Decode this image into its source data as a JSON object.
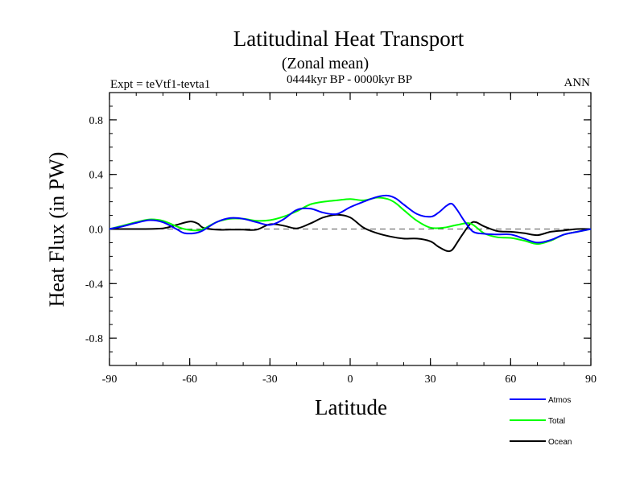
{
  "chart_data": {
    "type": "line",
    "title": "Latitudinal Heat Transport",
    "subtitle": "(Zonal mean)",
    "period": "0444kyr BP - 0000kyr BP",
    "experiment": "Expt = teVtf1-tevta1",
    "season": "ANN",
    "xlabel": "Latitude",
    "ylabel": "Heat Flux (in PW)",
    "xlim": [
      -90,
      90
    ],
    "ylim": [
      -1.0,
      1.0
    ],
    "x_ticks": [
      -90,
      -60,
      -30,
      0,
      30,
      60,
      90
    ],
    "x_tick_labels": [
      "-90",
      "-60",
      "-30",
      "0",
      "30",
      "60",
      "90"
    ],
    "y_ticks": [
      -0.8,
      -0.4,
      0.0,
      0.4,
      0.8
    ],
    "y_tick_labels": [
      "-0.8",
      "-0.4",
      "0.0",
      "0.4",
      "0.8"
    ],
    "zero_line": true,
    "legend_position": "bottom-right",
    "series": [
      {
        "name": "Atmos",
        "color": "#0000ff",
        "x": [
          -90,
          -85,
          -80,
          -75,
          -70,
          -65,
          -62,
          -58,
          -55,
          -50,
          -45,
          -40,
          -35,
          -30,
          -25,
          -20,
          -15,
          -10,
          -5,
          0,
          5,
          10,
          14,
          17,
          20,
          25,
          30,
          33,
          36,
          38,
          40,
          43,
          46,
          50,
          55,
          60,
          65,
          70,
          75,
          80,
          85,
          90
        ],
        "values": [
          0.0,
          0.02,
          0.045,
          0.065,
          0.05,
          0.0,
          -0.03,
          -0.03,
          -0.01,
          0.05,
          0.08,
          0.075,
          0.05,
          0.03,
          0.07,
          0.14,
          0.15,
          0.12,
          0.11,
          0.16,
          0.2,
          0.235,
          0.245,
          0.225,
          0.18,
          0.11,
          0.09,
          0.12,
          0.17,
          0.185,
          0.14,
          0.05,
          -0.02,
          -0.035,
          -0.04,
          -0.04,
          -0.07,
          -0.1,
          -0.08,
          -0.04,
          -0.02,
          0.0
        ]
      },
      {
        "name": "Total",
        "color": "#00ff00",
        "x": [
          -90,
          -85,
          -80,
          -75,
          -70,
          -65,
          -62,
          -58,
          -55,
          -50,
          -45,
          -40,
          -35,
          -30,
          -25,
          -20,
          -15,
          -10,
          -5,
          0,
          5,
          10,
          14,
          17,
          20,
          25,
          30,
          35,
          40,
          45,
          50,
          55,
          60,
          65,
          70,
          75,
          80,
          85,
          90
        ],
        "values": [
          0.0,
          0.025,
          0.05,
          0.07,
          0.06,
          0.02,
          0.0,
          -0.01,
          0.0,
          0.05,
          0.075,
          0.075,
          0.06,
          0.065,
          0.09,
          0.13,
          0.18,
          0.2,
          0.21,
          0.22,
          0.21,
          0.23,
          0.22,
          0.19,
          0.14,
          0.06,
          0.01,
          0.01,
          0.03,
          0.04,
          -0.03,
          -0.06,
          -0.065,
          -0.085,
          -0.11,
          -0.085,
          -0.04,
          -0.02,
          0.0
        ]
      },
      {
        "name": "Ocean",
        "color": "#000000",
        "x": [
          -90,
          -80,
          -70,
          -65,
          -60,
          -57,
          -55,
          -50,
          -45,
          -40,
          -35,
          -30,
          -25,
          -20,
          -15,
          -10,
          -5,
          0,
          5,
          10,
          15,
          20,
          25,
          30,
          33,
          36,
          38,
          40,
          42,
          45,
          47,
          50,
          55,
          60,
          65,
          70,
          75,
          80,
          85,
          90
        ],
        "values": [
          0.0,
          0.0,
          0.005,
          0.03,
          0.055,
          0.04,
          0.01,
          -0.005,
          -0.005,
          -0.005,
          -0.005,
          0.035,
          0.025,
          0.005,
          0.04,
          0.085,
          0.105,
          0.085,
          0.01,
          -0.03,
          -0.055,
          -0.07,
          -0.07,
          -0.09,
          -0.13,
          -0.16,
          -0.155,
          -0.1,
          -0.04,
          0.04,
          0.05,
          0.02,
          -0.015,
          -0.02,
          -0.03,
          -0.045,
          -0.02,
          -0.01,
          0.0,
          0.0
        ]
      }
    ]
  }
}
